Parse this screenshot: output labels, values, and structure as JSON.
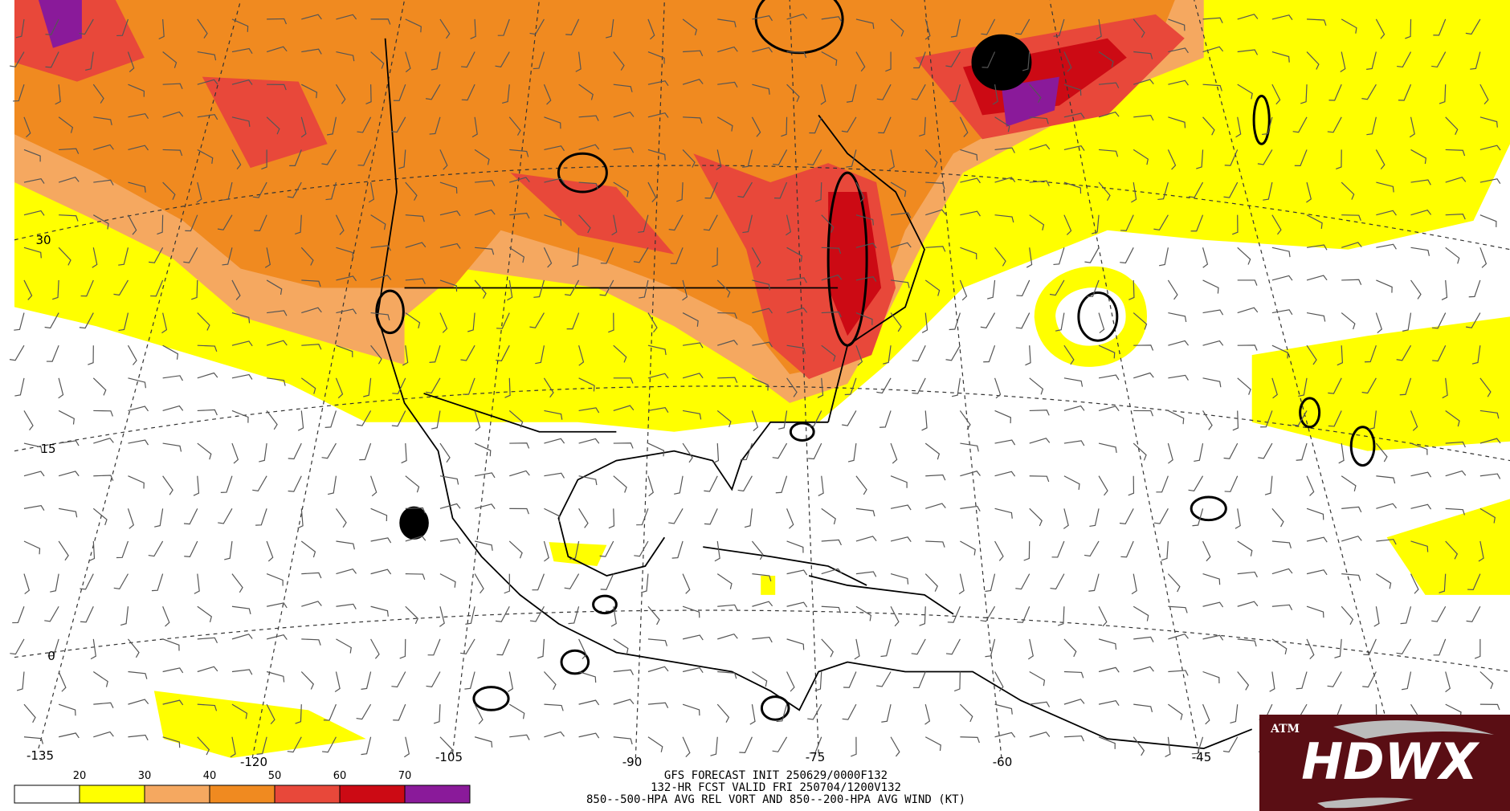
{
  "map": {
    "lat_labels": [
      30,
      15,
      0
    ],
    "lon_labels": [
      -135,
      -120,
      -105,
      -90,
      -75,
      -60,
      -45
    ]
  },
  "legend": {
    "ticks": [
      20,
      30,
      40,
      50,
      60,
      70
    ],
    "colors": [
      "#ffffff",
      "#ffff00",
      "#f5a860",
      "#f08a20",
      "#e8483a",
      "#cc0a14",
      "#8a1a9a"
    ]
  },
  "caption": {
    "line1": "GFS FORECAST INIT 250629/0000F132",
    "line2": "132-HR FCST VALID FRI 250704/1200V132",
    "line3": "850--500-HPA AVG REL VORT AND 850--200-HPA AVG WIND (KT)"
  },
  "logo": {
    "text": "HDWX"
  }
}
